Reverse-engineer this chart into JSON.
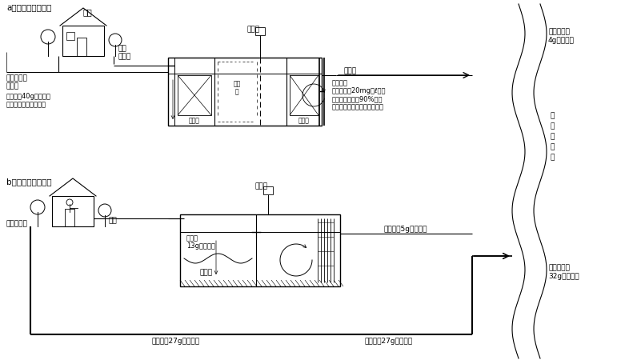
{
  "bg_color": "#ffffff",
  "line_color": "#000000",
  "title_a": "a　合併処理浄化槽",
  "title_b": "b　単独処理浄化槽",
  "label_house_a": "家庭",
  "label_sewer_a": "生活雑排水",
  "label_sewer_a2": "（注）",
  "label_bod_a1": "ＢＯＤ　40g／人・日",
  "label_bod_a2": "生物化学的酸素要求量",
  "label_shinya_a": "し尿",
  "label_inflow_a": "流入管",
  "label_blower_a": "ブロア",
  "label_contact1_a": "接触材",
  "label_contact2_a": "接触\n材",
  "label_contact3_a": "接触材",
  "label_discharge_pipe_a": "放流管",
  "label_discharge_q1": "放流水質",
  "label_discharge_q2": "ＢＯＤ　20mg／ℓ以下",
  "label_discharge_q3": "ＢＯＤ除去率90%以上",
  "label_discharge_q4": "（下水道の高級処理と同等）",
  "label_river_bod_a1": "放流ＢＯＤ",
  "label_river_bod_a2": "4g／人・日",
  "label_river1": "公",
  "label_river2": "共",
  "label_river3": "川",
  "label_river4": "水",
  "label_river5": "域",
  "label_sewer_b": "生活雑排水",
  "label_shinya_b": "し尿",
  "label_blower_b": "ブロア",
  "label_bod_b1": "ＢＯＤ",
  "label_bod_b2": "13g／人・日",
  "label_sludge_b": "汚　泥",
  "label_bod_b_out": "ＢＯＤ　5g／人・日",
  "label_bod_b_bot1": "ＢＯＤ　27g／人・日",
  "label_bod_b_bot2": "ＢＯＤ　27g／人・日",
  "label_river_bod_b1": "放流ＢＯＤ",
  "label_river_bod_b2": "32g／人・日"
}
